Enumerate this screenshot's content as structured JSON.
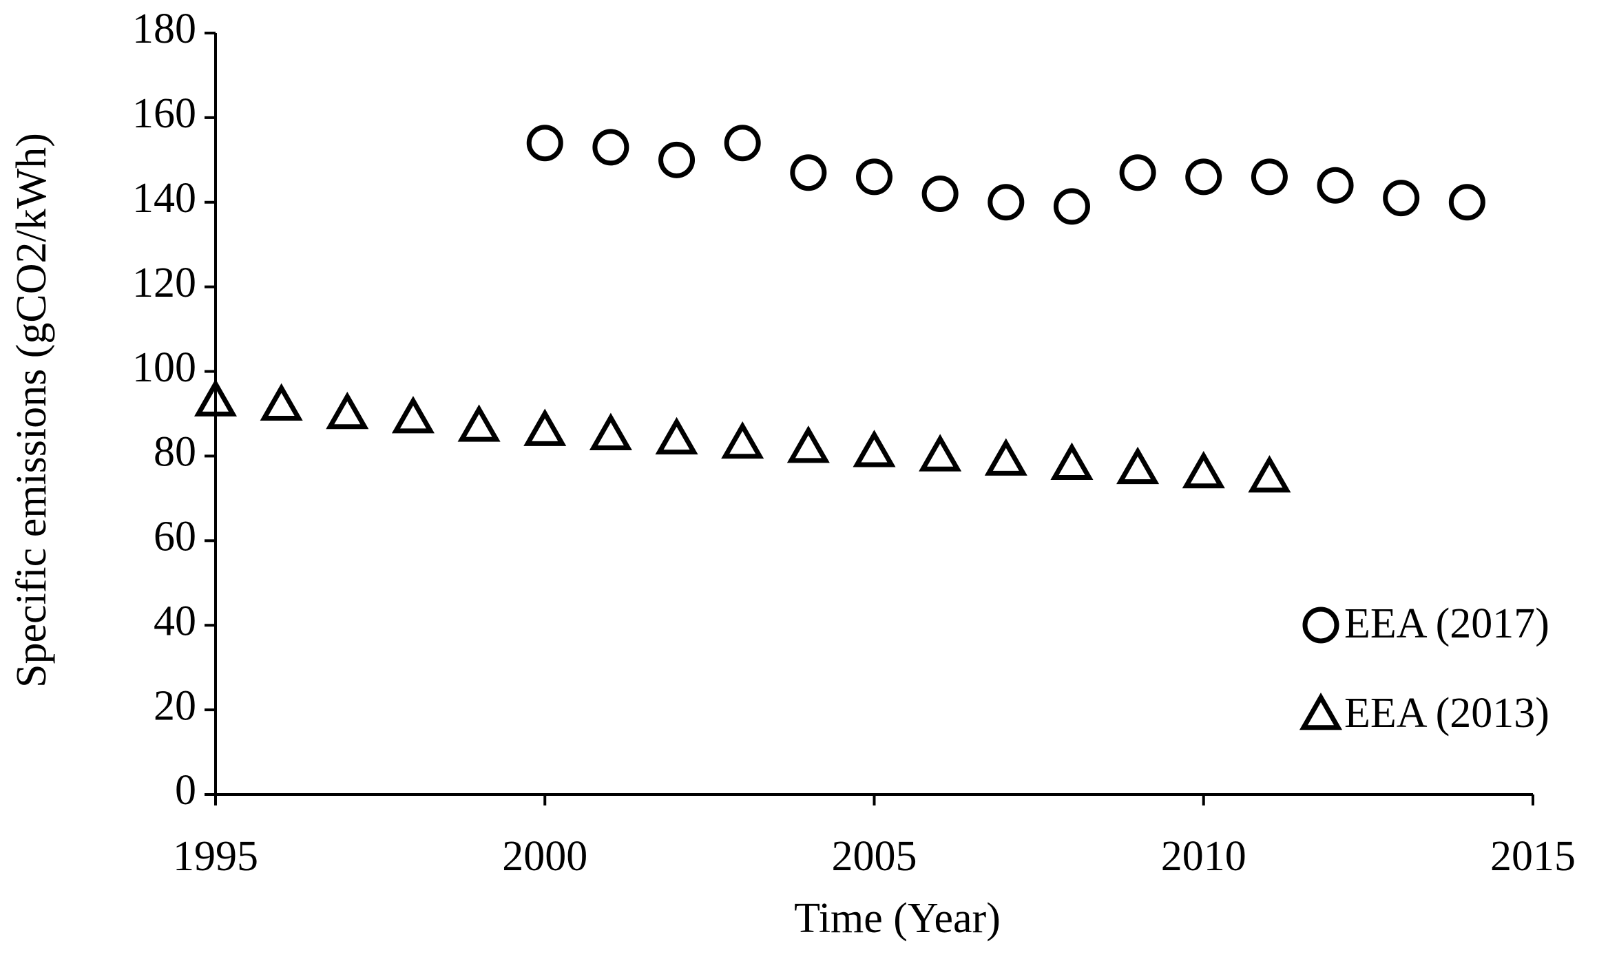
{
  "chart_data": {
    "type": "scatter",
    "xlabel": "Time (Year)",
    "ylabel": "Specific emissions (gCO2/kWh)",
    "xlim": [
      1995,
      2015
    ],
    "xticks": [
      1995,
      2000,
      2005,
      2010,
      2015
    ],
    "ylim": [
      0,
      180
    ],
    "yticks": [
      0,
      20,
      40,
      60,
      80,
      100,
      120,
      140,
      160,
      180
    ],
    "legend": "lower right",
    "series": [
      {
        "name": "EEA (2017)",
        "color": "#000000",
        "marker": "circle",
        "x": [
          2000,
          2001,
          2002,
          2003,
          2004,
          2005,
          2006,
          2007,
          2008,
          2009,
          2010,
          2011,
          2012,
          2013,
          2014
        ],
        "values": [
          154,
          153,
          150,
          154,
          147,
          146,
          142,
          140,
          139,
          147,
          146,
          146,
          144,
          141,
          140
        ]
      },
      {
        "name": "EEA (2013)",
        "color": "#000000",
        "marker": "triangle",
        "x": [
          1995,
          1996,
          1997,
          1998,
          1999,
          2000,
          2001,
          2002,
          2003,
          2004,
          2005,
          2006,
          2007,
          2008,
          2009,
          2010,
          2011
        ],
        "values": [
          93,
          92,
          90,
          89,
          87,
          86,
          85,
          84,
          83,
          82,
          81,
          80,
          79,
          78,
          77,
          76,
          75
        ]
      }
    ]
  }
}
